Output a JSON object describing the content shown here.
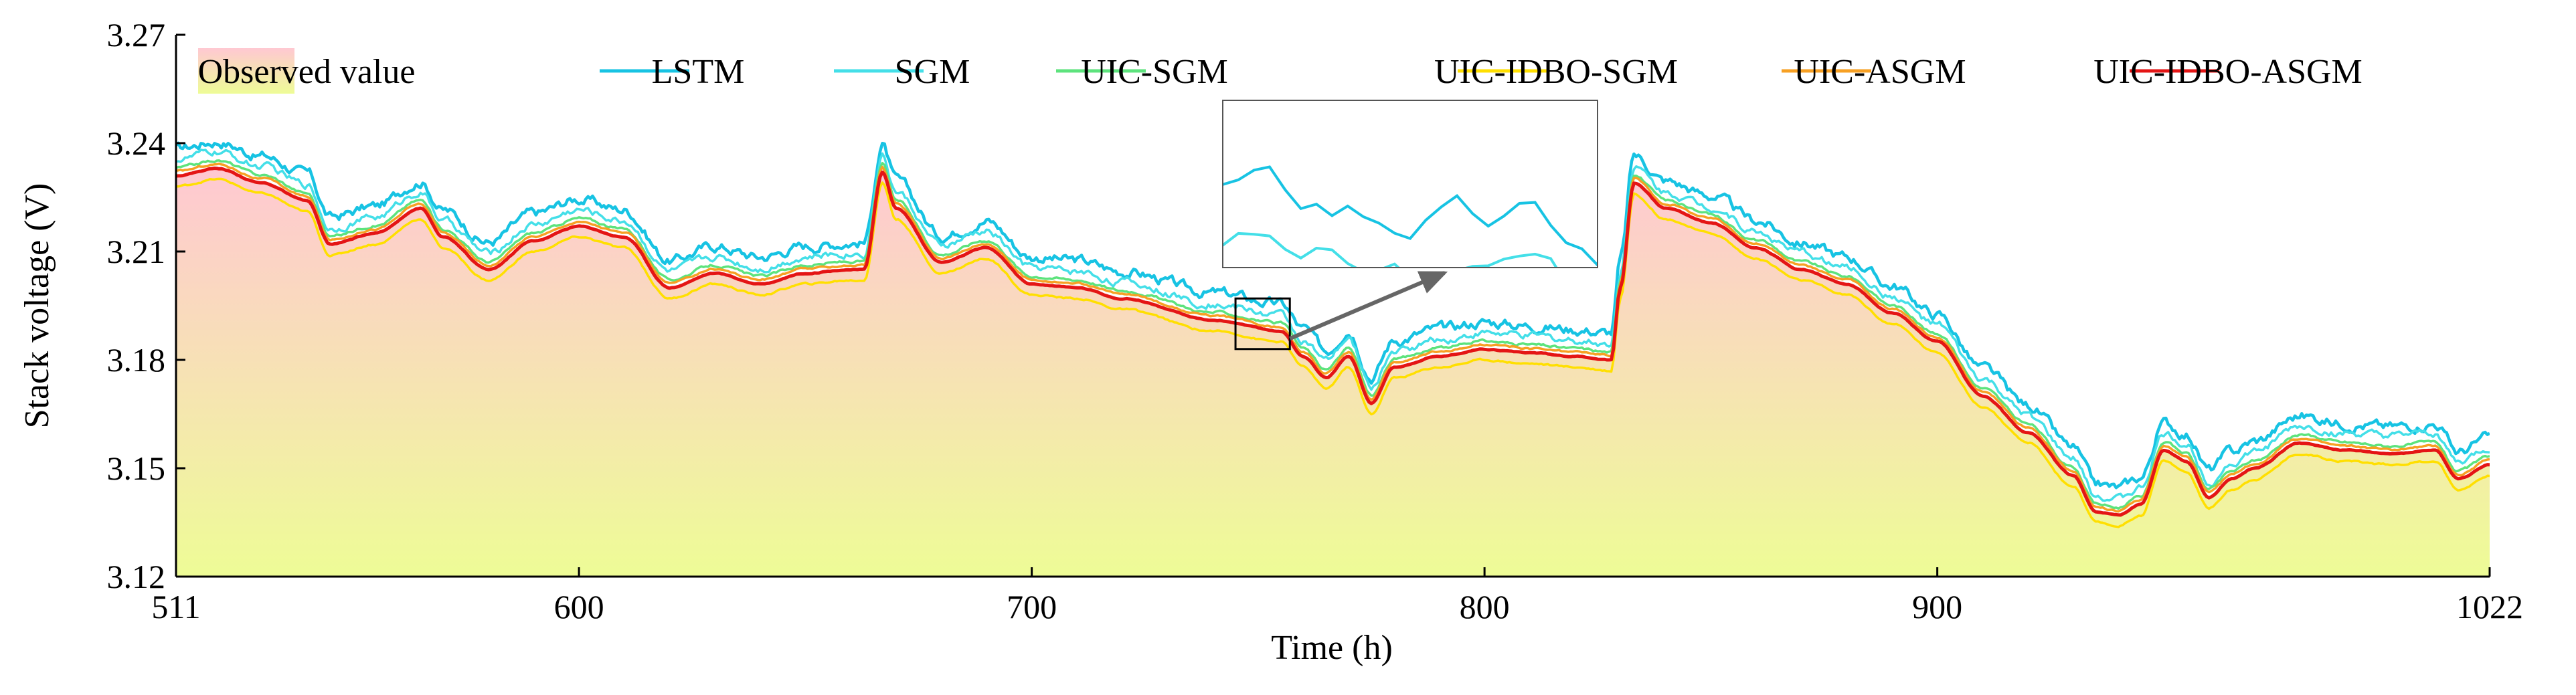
{
  "chart_data": {
    "type": "line",
    "title": "",
    "xlabel": "Time (h)",
    "ylabel": "Stack voltage (V)",
    "xlim": [
      511,
      1022
    ],
    "ylim": [
      3.12,
      3.27
    ],
    "xticks": [
      511,
      600,
      700,
      800,
      900,
      1022
    ],
    "yticks": [
      3.12,
      3.15,
      3.18,
      3.21,
      3.24,
      3.27
    ],
    "xtick_labels": [
      "511",
      "600",
      "700",
      "800",
      "900",
      "1022"
    ],
    "ytick_labels": [
      "3.12",
      "3.15",
      "3.18",
      "3.21",
      "3.24",
      "3.27"
    ],
    "grid": false,
    "legend_position": "top",
    "legend": [
      {
        "name": "Observed value",
        "kind": "area"
      },
      {
        "name": "LSTM",
        "kind": "line"
      },
      {
        "name": "SGM",
        "kind": "line"
      },
      {
        "name": "UIC-SGM",
        "kind": "line"
      },
      {
        "name": "UIC-IDBO-SGM",
        "kind": "line"
      },
      {
        "name": "UIC-ASGM",
        "kind": "line"
      },
      {
        "name": "UIC-IDBO-ASGM",
        "kind": "line"
      }
    ],
    "observed": {
      "name": "Observed value",
      "x": [
        511,
        520,
        530,
        540,
        545,
        555,
        565,
        570,
        580,
        590,
        600,
        610,
        620,
        630,
        640,
        650,
        660,
        663,
        667,
        670,
        680,
        690,
        700,
        710,
        720,
        740,
        755,
        760,
        765,
        770,
        775,
        780,
        790,
        800,
        810,
        820,
        828,
        830,
        833,
        840,
        850,
        860,
        870,
        880,
        890,
        900,
        910,
        920,
        930,
        935,
        940,
        945,
        950,
        955,
        960,
        965,
        970,
        980,
        990,
        1000,
        1010,
        1015,
        1022
      ],
      "y": [
        3.231,
        3.233,
        3.229,
        3.224,
        3.212,
        3.215,
        3.222,
        3.214,
        3.205,
        3.213,
        3.217,
        3.214,
        3.2,
        3.204,
        3.201,
        3.204,
        3.205,
        3.205,
        3.232,
        3.222,
        3.207,
        3.211,
        3.201,
        3.2,
        3.197,
        3.191,
        3.188,
        3.181,
        3.175,
        3.181,
        3.168,
        3.178,
        3.181,
        3.183,
        3.182,
        3.181,
        3.18,
        3.2,
        3.229,
        3.222,
        3.218,
        3.211,
        3.205,
        3.201,
        3.193,
        3.185,
        3.17,
        3.16,
        3.148,
        3.138,
        3.137,
        3.14,
        3.155,
        3.152,
        3.142,
        3.147,
        3.15,
        3.157,
        3.155,
        3.154,
        3.155,
        3.147,
        3.151
      ]
    },
    "series": [
      {
        "name": "LSTM",
        "color": "#17c3e3",
        "offset": 0.0075,
        "noise": 0.0022
      },
      {
        "name": "SGM",
        "color": "#44dfe8",
        "offset": 0.0045,
        "noise": 0.0016
      },
      {
        "name": "UIC-SGM",
        "color": "#5de37d",
        "offset": 0.0022,
        "noise": 0.0006
      },
      {
        "name": "UIC-IDBO-SGM",
        "color": "#ffdf00",
        "offset": -0.003,
        "noise": 0.0004
      },
      {
        "name": "UIC-ASGM",
        "color": "#f7a023",
        "offset": 0.0012,
        "noise": 0.0004
      },
      {
        "name": "UIC-IDBO-ASGM",
        "color": "#e41515",
        "offset": 0.0,
        "noise": 0.0002
      }
    ],
    "annotation": {
      "type": "zoom-inset",
      "region_x": [
        745,
        757
      ],
      "region_y": [
        3.183,
        3.197
      ],
      "inset_y": [
        3.193,
        3.203
      ]
    }
  }
}
